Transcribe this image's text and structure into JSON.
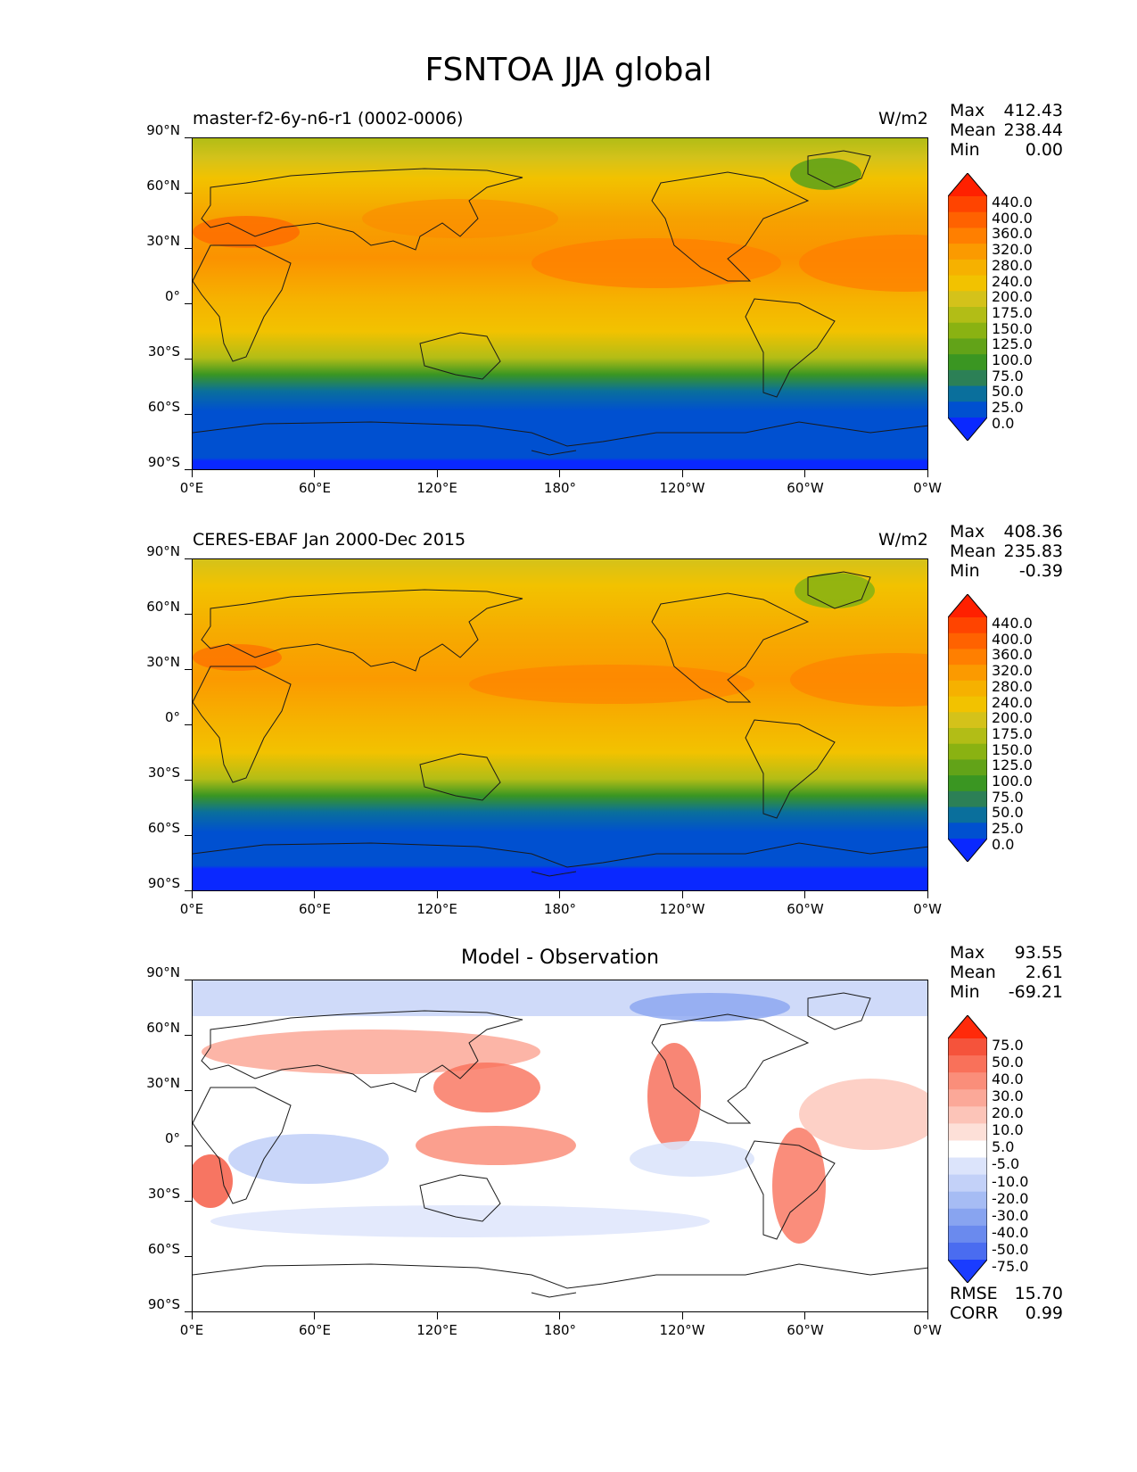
{
  "title": "FSNTOA JJA global",
  "y_ticks": [
    "90°N",
    "60°N",
    "30°N",
    "0°",
    "30°S",
    "60°S",
    "90°S"
  ],
  "x_ticks": [
    "0°E",
    "60°E",
    "120°E",
    "180°",
    "120°W",
    "60°W",
    "0°W"
  ],
  "panels": [
    {
      "left_title": "master-f2-6y-n6-r1 (0002-0006)",
      "center_title": "",
      "units": "W/m2",
      "stats": [
        {
          "label": "Max",
          "value": "412.43"
        },
        {
          "label": "Mean",
          "value": "238.44"
        },
        {
          "label": "Min",
          "value": "0.00"
        }
      ],
      "colorbar_labels": [
        "440.0",
        "400.0",
        "360.0",
        "320.0",
        "280.0",
        "240.0",
        "200.0",
        "175.0",
        "150.0",
        "125.0",
        "100.0",
        "75.0",
        "50.0",
        "25.0",
        "0.0"
      ],
      "colorbar_colors": [
        "#ff2000",
        "#ff4400",
        "#ff6200",
        "#ff7f00",
        "#fb9a00",
        "#f6b100",
        "#f2c200",
        "#d4c21a",
        "#b2bd16",
        "#8ab212",
        "#62a318",
        "#3a9622",
        "#2c8056",
        "#0a6f9c",
        "#0050d0",
        "#0a28ff"
      ]
    },
    {
      "left_title": "CERES-EBAF Jan 2000-Dec 2015",
      "center_title": "",
      "units": "W/m2",
      "stats": [
        {
          "label": "Max",
          "value": "408.36"
        },
        {
          "label": "Mean",
          "value": "235.83"
        },
        {
          "label": "Min",
          "value": "-0.39"
        }
      ],
      "colorbar_labels": [
        "440.0",
        "400.0",
        "360.0",
        "320.0",
        "280.0",
        "240.0",
        "200.0",
        "175.0",
        "150.0",
        "125.0",
        "100.0",
        "75.0",
        "50.0",
        "25.0",
        "0.0"
      ],
      "colorbar_colors": [
        "#ff2000",
        "#ff4400",
        "#ff6200",
        "#ff7f00",
        "#fb9a00",
        "#f6b100",
        "#f2c200",
        "#d4c21a",
        "#b2bd16",
        "#8ab212",
        "#62a318",
        "#3a9622",
        "#2c8056",
        "#0a6f9c",
        "#0050d0",
        "#0a28ff"
      ]
    },
    {
      "left_title": "",
      "center_title": "Model - Observation",
      "units": "",
      "stats": [
        {
          "label": "Max",
          "value": "93.55"
        },
        {
          "label": "Mean",
          "value": "2.61"
        },
        {
          "label": "Min",
          "value": "-69.21"
        }
      ],
      "extra_stats": [
        {
          "label": "RMSE",
          "value": "15.70"
        },
        {
          "label": "CORR",
          "value": "0.99"
        }
      ],
      "colorbar_labels": [
        "75.0",
        "50.0",
        "40.0",
        "30.0",
        "20.0",
        "10.0",
        "5.0",
        "-5.0",
        "-10.0",
        "-20.0",
        "-30.0",
        "-40.0",
        "-50.0",
        "-75.0"
      ],
      "colorbar_colors": [
        "#ff2a0a",
        "#f5533b",
        "#f9715a",
        "#fa8e7a",
        "#fba898",
        "#fcc4b8",
        "#fde0d8",
        "#ffffff",
        "#dce4fb",
        "#c3d1f8",
        "#a6bcf4",
        "#88a4f0",
        "#6a8aee",
        "#4a6cf0",
        "#1a3cff"
      ]
    }
  ]
}
